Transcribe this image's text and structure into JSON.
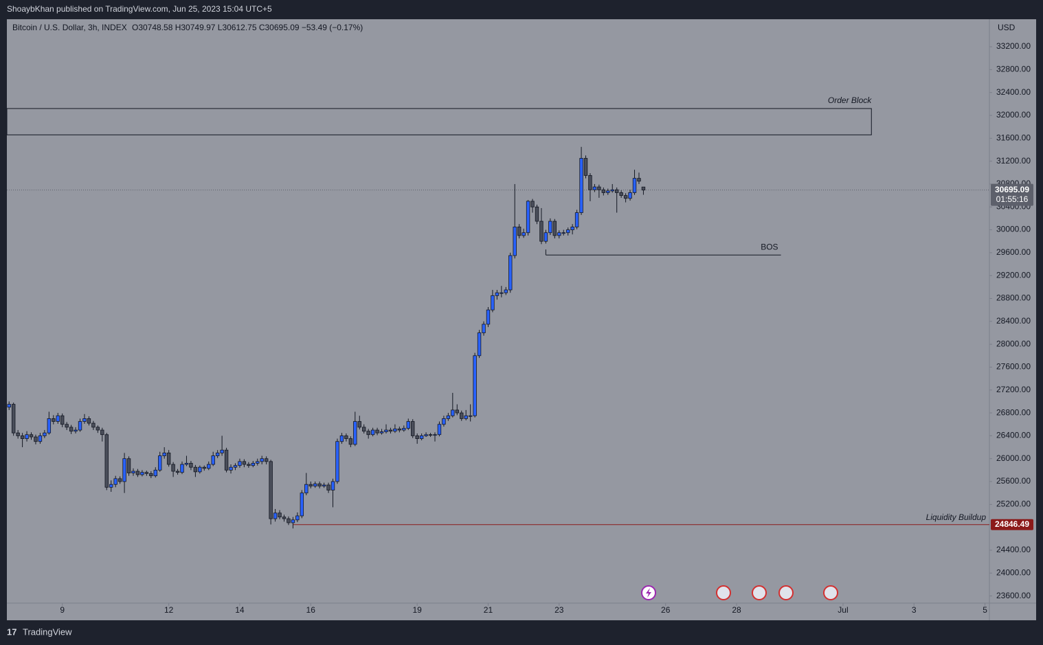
{
  "header": {
    "publisher": "ShoaybKhan published on TradingView.com, Jun 25, 2023 15:04 UTC+5",
    "brand": "TradingView"
  },
  "chart_data": {
    "type": "candlestick",
    "title": "Bitcoin / U.S. Dollar, 3h, INDEX",
    "subtitle": "O30748.58  H30749.97  L30612.75  C30695.09  −53.49 (−0.17%)",
    "currency": "USD",
    "up_color": "#2962ff",
    "down_color": "#4a4e5a",
    "ohlc": [
      [
        26900,
        27000,
        26850,
        26950
      ],
      [
        26950,
        26980,
        26400,
        26450
      ],
      [
        26450,
        26500,
        26350,
        26400
      ],
      [
        26400,
        26450,
        26200,
        26350
      ],
      [
        26350,
        26480,
        26300,
        26420
      ],
      [
        26420,
        26460,
        26330,
        26380
      ],
      [
        26380,
        26420,
        26250,
        26300
      ],
      [
        26300,
        26450,
        26260,
        26400
      ],
      [
        26400,
        26500,
        26360,
        26450
      ],
      [
        26450,
        26820,
        26420,
        26700
      ],
      [
        26700,
        26760,
        26600,
        26650
      ],
      [
        26650,
        26800,
        26610,
        26750
      ],
      [
        26750,
        26790,
        26550,
        26600
      ],
      [
        26600,
        26640,
        26500,
        26550
      ],
      [
        26550,
        26590,
        26430,
        26480
      ],
      [
        26480,
        26550,
        26440,
        26500
      ],
      [
        26500,
        26700,
        26470,
        26650
      ],
      [
        26650,
        26780,
        26610,
        26700
      ],
      [
        26700,
        26740,
        26580,
        26620
      ],
      [
        26620,
        26660,
        26500,
        26550
      ],
      [
        26550,
        26580,
        26450,
        26500
      ],
      [
        26500,
        26540,
        26300,
        26420
      ],
      [
        26420,
        26450,
        25450,
        25500
      ],
      [
        25500,
        25620,
        25420,
        25550
      ],
      [
        25550,
        25700,
        25500,
        25650
      ],
      [
        25650,
        25690,
        25560,
        25600
      ],
      [
        25600,
        26100,
        25400,
        26000
      ],
      [
        26000,
        26040,
        25700,
        25750
      ],
      [
        25750,
        25830,
        25700,
        25780
      ],
      [
        25780,
        25820,
        25680,
        25720
      ],
      [
        25720,
        25800,
        25690,
        25760
      ],
      [
        25760,
        25790,
        25700,
        25740
      ],
      [
        25740,
        25780,
        25660,
        25700
      ],
      [
        25700,
        25850,
        25670,
        25800
      ],
      [
        25800,
        26120,
        25770,
        26050
      ],
      [
        26050,
        26200,
        26000,
        26100
      ],
      [
        26100,
        26150,
        25860,
        25900
      ],
      [
        25900,
        25940,
        25680,
        25780
      ],
      [
        25780,
        25820,
        25720,
        25760
      ],
      [
        25760,
        25950,
        25730,
        25900
      ],
      [
        25900,
        26050,
        25870,
        25920
      ],
      [
        25920,
        25960,
        25800,
        25850
      ],
      [
        25850,
        25890,
        25680,
        25770
      ],
      [
        25770,
        25880,
        25740,
        25850
      ],
      [
        25850,
        25880,
        25790,
        25830
      ],
      [
        25830,
        25950,
        25800,
        25900
      ],
      [
        25900,
        26120,
        25870,
        26050
      ],
      [
        26050,
        26150,
        26010,
        26100
      ],
      [
        26100,
        26400,
        26050,
        26150
      ],
      [
        26150,
        26190,
        25760,
        25800
      ],
      [
        25800,
        25900,
        25740,
        25850
      ],
      [
        25850,
        25920,
        25800,
        25880
      ],
      [
        25880,
        26000,
        25840,
        25950
      ],
      [
        25950,
        25990,
        25850,
        25900
      ],
      [
        25900,
        25940,
        25840,
        25880
      ],
      [
        25880,
        25960,
        25850,
        25920
      ],
      [
        25920,
        26000,
        25880,
        25950
      ],
      [
        25950,
        26050,
        25900,
        26000
      ],
      [
        26000,
        26040,
        25900,
        25950
      ],
      [
        25950,
        25980,
        24850,
        24950
      ],
      [
        24950,
        25120,
        24900,
        25050
      ],
      [
        25050,
        25100,
        24940,
        24980
      ],
      [
        24980,
        25020,
        24900,
        24950
      ],
      [
        24950,
        24990,
        24840,
        24880
      ],
      [
        24880,
        24980,
        24780,
        24930
      ],
      [
        24930,
        25060,
        24890,
        25000
      ],
      [
        25000,
        25450,
        24960,
        25400
      ],
      [
        25400,
        25750,
        25360,
        25550
      ],
      [
        25550,
        25600,
        25480,
        25520
      ],
      [
        25520,
        25600,
        25490,
        25560
      ],
      [
        25560,
        25600,
        25480,
        25520
      ],
      [
        25520,
        25580,
        25490,
        25540
      ],
      [
        25540,
        25580,
        25400,
        25450
      ],
      [
        25450,
        25650,
        25150,
        25600
      ],
      [
        25600,
        26350,
        25560,
        26300
      ],
      [
        26300,
        26450,
        26260,
        26400
      ],
      [
        26400,
        26440,
        26300,
        26350
      ],
      [
        26350,
        26390,
        26200,
        26250
      ],
      [
        26250,
        26820,
        26220,
        26650
      ],
      [
        26650,
        26750,
        26510,
        26550
      ],
      [
        26550,
        26600,
        26440,
        26480
      ],
      [
        26480,
        26520,
        26350,
        26420
      ],
      [
        26420,
        26540,
        26390,
        26500
      ],
      [
        26500,
        26540,
        26410,
        26450
      ],
      [
        26450,
        26520,
        26420,
        26470
      ],
      [
        26470,
        26600,
        26440,
        26500
      ],
      [
        26500,
        26540,
        26440,
        26480
      ],
      [
        26480,
        26600,
        26450,
        26520
      ],
      [
        26520,
        26560,
        26460,
        26500
      ],
      [
        26500,
        26580,
        26470,
        26530
      ],
      [
        26530,
        26700,
        26500,
        26650
      ],
      [
        26650,
        26690,
        26360,
        26400
      ],
      [
        26400,
        26440,
        26260,
        26350
      ],
      [
        26350,
        26440,
        26320,
        26400
      ],
      [
        26400,
        26460,
        26380,
        26420
      ],
      [
        26420,
        26450,
        26380,
        26410
      ],
      [
        26410,
        26460,
        26300,
        26420
      ],
      [
        26420,
        26650,
        26390,
        26600
      ],
      [
        26600,
        26750,
        26560,
        26700
      ],
      [
        26700,
        26800,
        26660,
        26750
      ],
      [
        26750,
        27150,
        26720,
        26850
      ],
      [
        26850,
        26950,
        26760,
        26800
      ],
      [
        26800,
        26840,
        26660,
        26700
      ],
      [
        26700,
        26850,
        26670,
        26750
      ],
      [
        26750,
        26950,
        26650,
        26750
      ],
      [
        26750,
        27850,
        26720,
        27800
      ],
      [
        27800,
        28250,
        27760,
        28200
      ],
      [
        28200,
        28400,
        28150,
        28350
      ],
      [
        28350,
        28650,
        28300,
        28600
      ],
      [
        28600,
        28950,
        28560,
        28850
      ],
      [
        28850,
        28950,
        28780,
        28900
      ],
      [
        28900,
        29020,
        28820,
        28900
      ],
      [
        28900,
        29000,
        28860,
        28950
      ],
      [
        28950,
        29600,
        28900,
        29550
      ],
      [
        29550,
        30800,
        29500,
        30050
      ],
      [
        30050,
        30100,
        29850,
        29900
      ],
      [
        29900,
        30020,
        29860,
        29950
      ],
      [
        29950,
        30520,
        29900,
        30500
      ],
      [
        30500,
        30540,
        30300,
        30400
      ],
      [
        30400,
        30440,
        30100,
        30150
      ],
      [
        30150,
        30380,
        29750,
        29800
      ],
      [
        29800,
        30000,
        29760,
        29950
      ],
      [
        29950,
        30200,
        29910,
        30150
      ],
      [
        30150,
        30190,
        29850,
        29900
      ],
      [
        29900,
        29990,
        29850,
        29950
      ],
      [
        29950,
        30000,
        29900,
        29950
      ],
      [
        29950,
        30040,
        29900,
        30000
      ],
      [
        30000,
        30100,
        29920,
        30050
      ],
      [
        30050,
        30350,
        30010,
        30300
      ],
      [
        30300,
        31450,
        30260,
        31250
      ],
      [
        31250,
        31300,
        30900,
        30950
      ],
      [
        30950,
        30990,
        30500,
        30700
      ],
      [
        30700,
        30800,
        30660,
        30750
      ],
      [
        30750,
        30790,
        30560,
        30700
      ],
      [
        30700,
        30740,
        30600,
        30650
      ],
      [
        30650,
        30720,
        30610,
        30680
      ],
      [
        30680,
        30800,
        30650,
        30700
      ],
      [
        30700,
        30740,
        30300,
        30650
      ],
      [
        30650,
        30690,
        30560,
        30600
      ],
      [
        30600,
        30640,
        30480,
        30550
      ],
      [
        30550,
        30700,
        30510,
        30650
      ],
      [
        30650,
        31050,
        30610,
        30900
      ],
      [
        30900,
        31000,
        30800,
        30850
      ],
      [
        30748.58,
        30749.97,
        30612.75,
        30695.09
      ]
    ],
    "xlim": [
      -0.5,
      221
    ],
    "xticks": [
      {
        "value": 12,
        "label": "9"
      },
      {
        "value": 36,
        "label": "12"
      },
      {
        "value": 52,
        "label": "14"
      },
      {
        "value": 68,
        "label": "16"
      },
      {
        "value": 92,
        "label": "19"
      },
      {
        "value": 108,
        "label": "21"
      },
      {
        "value": 124,
        "label": "23"
      },
      {
        "value": 148,
        "label": "26"
      },
      {
        "value": 164,
        "label": "28"
      },
      {
        "value": 188,
        "label": "Jul"
      },
      {
        "value": 204,
        "label": "3"
      },
      {
        "value": 220,
        "label": "5"
      }
    ],
    "ylim": [
      23475,
      33681
    ],
    "yticks": [
      {
        "value": 23600,
        "label": "23600.00"
      },
      {
        "value": 24000,
        "label": "24000.00"
      },
      {
        "value": 24400,
        "label": "24400.00"
      },
      {
        "value": 25200,
        "label": "25200.00"
      },
      {
        "value": 25600,
        "label": "25600.00"
      },
      {
        "value": 26000,
        "label": "26000.00"
      },
      {
        "value": 26400,
        "label": "26400.00"
      },
      {
        "value": 26800,
        "label": "26800.00"
      },
      {
        "value": 27200,
        "label": "27200.00"
      },
      {
        "value": 27600,
        "label": "27600.00"
      },
      {
        "value": 28000,
        "label": "28000.00"
      },
      {
        "value": 28400,
        "label": "28400.00"
      },
      {
        "value": 28800,
        "label": "28800.00"
      },
      {
        "value": 29200,
        "label": "29200.00"
      },
      {
        "value": 29600,
        "label": "29600.00"
      },
      {
        "value": 30000,
        "label": "30000.00"
      },
      {
        "value": 30400,
        "label": "30400.00"
      },
      {
        "value": 30800,
        "label": "30800.00"
      },
      {
        "value": 31200,
        "label": "31200.00"
      },
      {
        "value": 31600,
        "label": "31600.00"
      },
      {
        "value": 32000,
        "label": "32000.00"
      },
      {
        "value": 32400,
        "label": "32400.00"
      },
      {
        "value": 32800,
        "label": "32800.00"
      },
      {
        "value": 33200,
        "label": "33200.00"
      }
    ],
    "last_price": 30695.09,
    "countdown": "01:55:16",
    "order_block": {
      "label": "Order Block",
      "top": 32120,
      "bottom": 31660,
      "x_end": 194.4
    },
    "bos": {
      "label": "BOS",
      "price": 29560,
      "x_start": 121,
      "x_end": 174
    },
    "liquidity": {
      "label": "Liquidity Buildup",
      "price": 24846.49,
      "x_start": 64,
      "color": "#8b1a1a"
    }
  }
}
